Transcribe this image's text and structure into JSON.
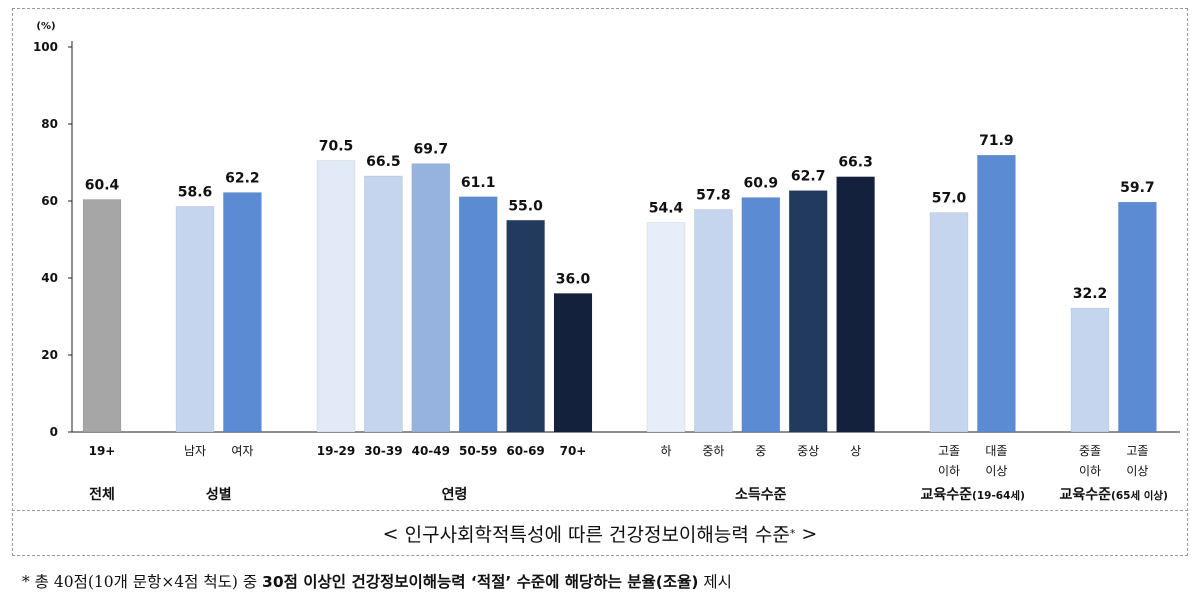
{
  "chart_data": {
    "type": "bar",
    "ylabel": "(%)",
    "ylim": [
      0,
      100
    ],
    "yticks": [
      0,
      20,
      40,
      60,
      80,
      100
    ],
    "groups": [
      {
        "label": "전체",
        "bars": [
          {
            "label": "19+",
            "value": 60.4,
            "color": "#a6a6a6"
          }
        ]
      },
      {
        "label": "성별",
        "bars": [
          {
            "label": "남자",
            "value": 58.6,
            "color": "#c6d5ee"
          },
          {
            "label": "여자",
            "value": 62.2,
            "color": "#5b8bd2"
          }
        ]
      },
      {
        "label": "연령",
        "bars": [
          {
            "label": "19-29",
            "value": 70.5,
            "color": "#e3eaf7"
          },
          {
            "label": "30-39",
            "value": 66.5,
            "color": "#c6d5ee"
          },
          {
            "label": "40-49",
            "value": 69.7,
            "color": "#96b3e0"
          },
          {
            "label": "50-59",
            "value": 61.1,
            "color": "#5b8bd2"
          },
          {
            "label": "60-69",
            "value": 55.0,
            "color": "#213a5e"
          },
          {
            "label": "70+",
            "value": 36.0,
            "color": "#14213d"
          }
        ]
      },
      {
        "label": "소득수준",
        "bars": [
          {
            "label": "하",
            "value": 54.4,
            "color": "#e8eef9"
          },
          {
            "label": "중하",
            "value": 57.8,
            "color": "#c6d5ee"
          },
          {
            "label": "중",
            "value": 60.9,
            "color": "#5b8bd2"
          },
          {
            "label": "중상",
            "value": 62.7,
            "color": "#213a5e"
          },
          {
            "label": "상",
            "value": 66.3,
            "color": "#14213d"
          }
        ]
      },
      {
        "label": "교육수준",
        "sublabel": "(19-64세)",
        "bars": [
          {
            "label": "고졸",
            "label2": "이하",
            "value": 57.0,
            "color": "#c6d5ee"
          },
          {
            "label": "대졸",
            "label2": "이상",
            "value": 71.9,
            "color": "#5b8bd2"
          }
        ]
      },
      {
        "label": "교육수준",
        "sublabel": "(65세 이상)",
        "bars": [
          {
            "label": "중졸",
            "label2": "이하",
            "value": 32.2,
            "color": "#c6d5ee"
          },
          {
            "label": "고졸",
            "label2": "이상",
            "value": 59.7,
            "color": "#5b8bd2"
          }
        ]
      }
    ]
  },
  "caption": {
    "open": "<",
    "text": "인구사회학적특성에 따른 건강정보이해능력 수준",
    "mark": "*",
    "close": ">"
  },
  "footnote": {
    "part1": "* 총 40점(10개 문항×4점 척도) 중 ",
    "part2": "30점 이상인 건강정보이해능력 ‘적절’ 수준에 해당하는 분율(조율)",
    "part3": " 제시"
  }
}
